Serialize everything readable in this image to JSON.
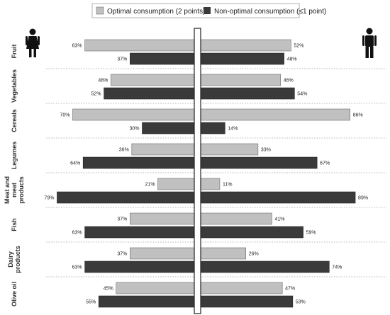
{
  "chart_data": {
    "type": "bar",
    "title": "",
    "xlabel": "",
    "ylabel": "",
    "xlim": [
      0,
      100
    ],
    "groups": [
      "Women",
      "Men"
    ],
    "categories": [
      "Fruit",
      "Vegetables",
      "Cereals",
      "Legumes",
      "Meat and meat products",
      "Fish",
      "Dairy products",
      "Olive oil"
    ],
    "series": [
      {
        "name": "Optimal consumption (2 points)",
        "color": "#c0c0c0",
        "women": [
          63,
          48,
          70,
          36,
          21,
          37,
          37,
          45
        ],
        "men": [
          52,
          46,
          86,
          33,
          11,
          41,
          26,
          47
        ]
      },
      {
        "name": "Non-optimal consumption (≤1 point)",
        "color": "#3a3a3a",
        "women": [
          37,
          52,
          30,
          64,
          79,
          63,
          63,
          55
        ],
        "men": [
          48,
          54,
          14,
          67,
          89,
          59,
          74,
          53
        ]
      }
    ],
    "legend_position": "top-center",
    "grid": false,
    "icons": [
      "woman-icon",
      "man-icon"
    ]
  }
}
